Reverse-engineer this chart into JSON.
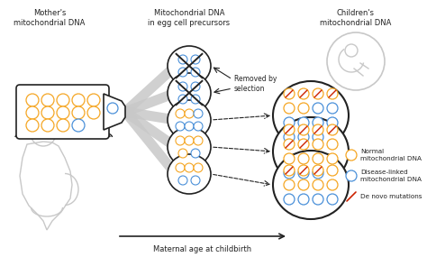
{
  "bg_color": "#ffffff",
  "orange_color": "#F5A623",
  "blue_color": "#4A90D9",
  "red_color": "#CC2200",
  "dark_color": "#222222",
  "gray_color": "#AAAAAA",
  "light_gray": "#C8C8C8",
  "outline_gray": "#999999",
  "labels": {
    "mother_title": "Mother's\nmitochondrial DNA",
    "middle_title": "Mitochondrial DNA\nin egg cell precursors",
    "children_title": "Children's\nmitochondrial DNA",
    "removed": "Removed by\nselection",
    "normal_dna": "Normal\nmitochondrial DNA",
    "disease_dna": "Disease-linked\nmitochondrial DNA",
    "denovo": "De novo mutations",
    "xaxis": "Maternal age at childbirth"
  }
}
